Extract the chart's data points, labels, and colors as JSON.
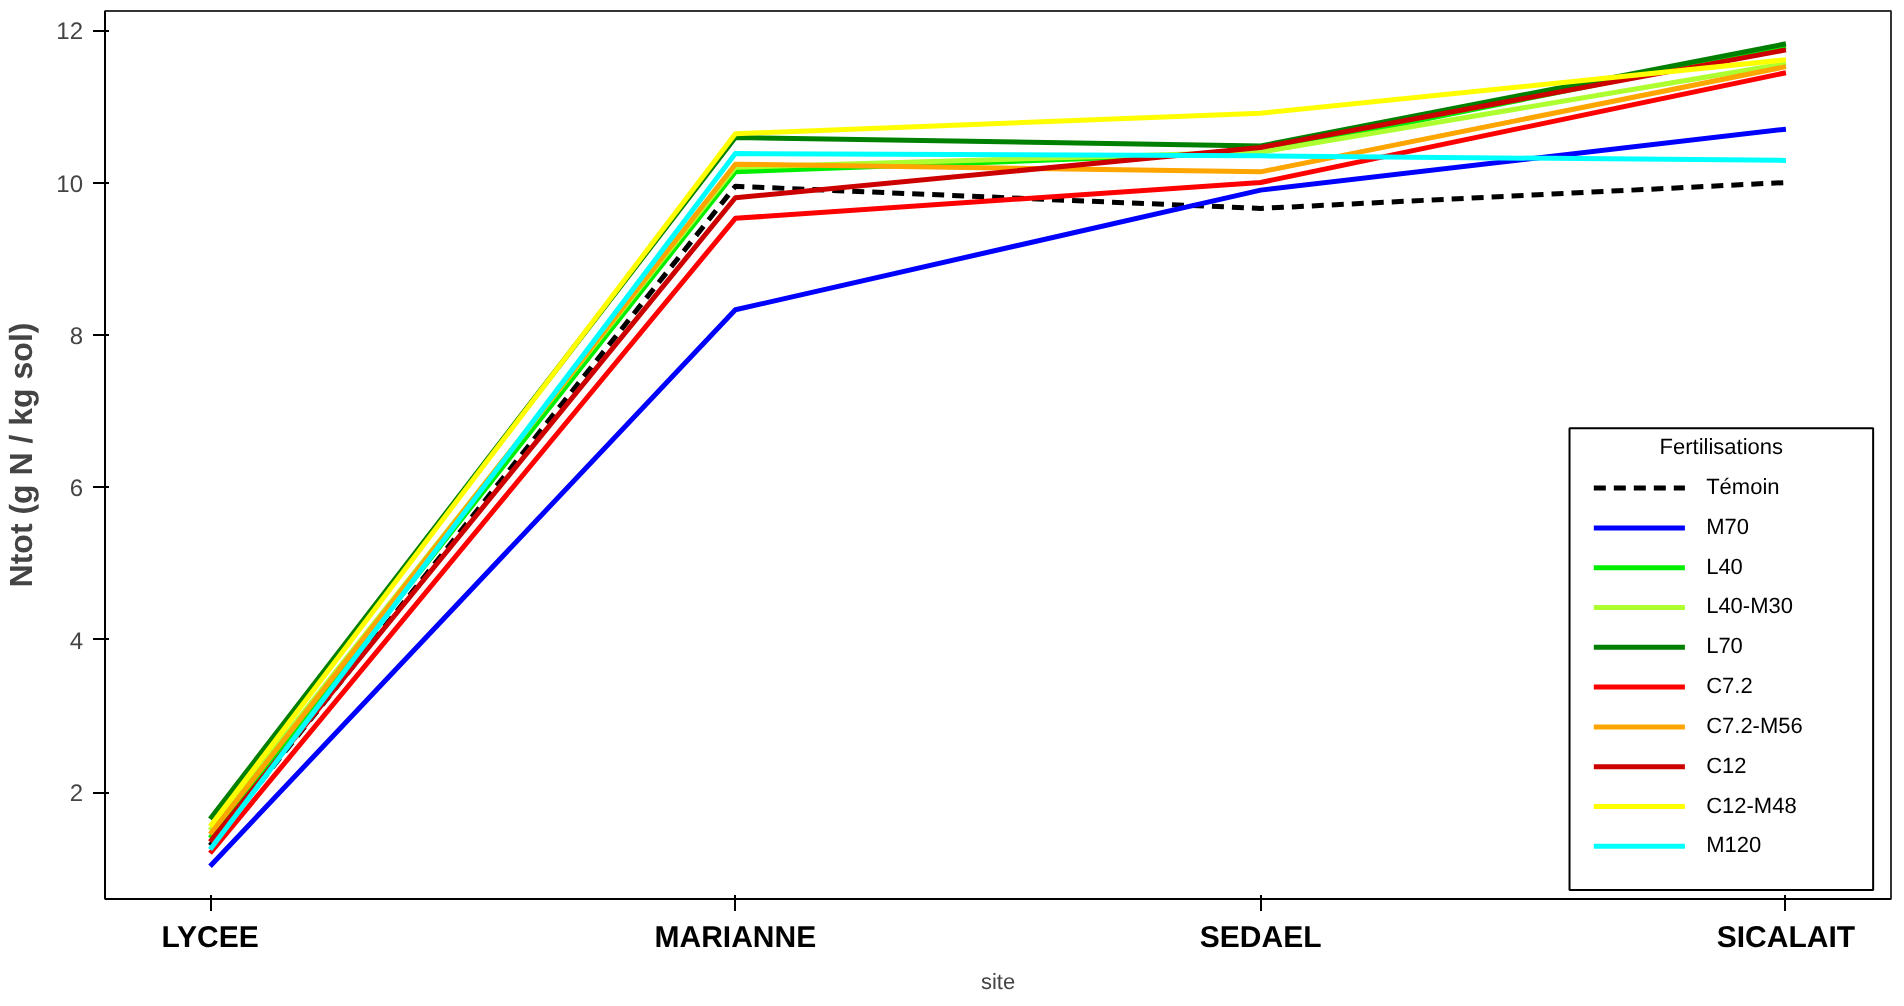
{
  "chart_data": {
    "type": "line",
    "xlabel": "site",
    "ylabel": "Ntot (g N / kg sol)",
    "legend_title": "Fertilisations",
    "legend": "bottom right",
    "grid": false,
    "marker": "none",
    "categories": [
      "LYCEE",
      "MARIANNE",
      "SEDAEL",
      "SICALAIT"
    ],
    "ylim": [
      0.6,
      12.25
    ],
    "yticks": [
      2,
      4,
      6,
      8,
      10,
      12
    ],
    "series": [
      {
        "name": "Témoin",
        "color": "#000000",
        "line_style": "dashed",
        "values": [
          1.3,
          9.95,
          9.66,
          10.0
        ]
      },
      {
        "name": "M70",
        "color": "#0000ff",
        "values": [
          1.03,
          8.33,
          9.9,
          10.7
        ]
      },
      {
        "name": "L40",
        "color": "#00ee00",
        "values": [
          1.4,
          10.14,
          10.4,
          11.78
        ]
      },
      {
        "name": "L40-M30",
        "color": "#adff2f",
        "values": [
          1.5,
          10.2,
          10.4,
          11.56
        ]
      },
      {
        "name": "L70",
        "color": "#008000",
        "values": [
          1.65,
          10.59,
          10.48,
          11.82
        ]
      },
      {
        "name": "C7.2",
        "color": "#ff0000",
        "values": [
          1.2,
          9.53,
          10.0,
          11.44
        ]
      },
      {
        "name": "C7.2-M56",
        "color": "#ffa500",
        "values": [
          1.45,
          10.24,
          10.14,
          11.52
        ]
      },
      {
        "name": "C12",
        "color": "#cd0000",
        "values": [
          1.35,
          9.8,
          10.46,
          11.74
        ]
      },
      {
        "name": "C12-M48",
        "color": "#ffff00",
        "values": [
          1.55,
          10.64,
          10.91,
          11.61
        ]
      },
      {
        "name": "M120",
        "color": "#00ffff",
        "values": [
          1.25,
          10.38,
          10.35,
          10.29
        ]
      }
    ]
  }
}
